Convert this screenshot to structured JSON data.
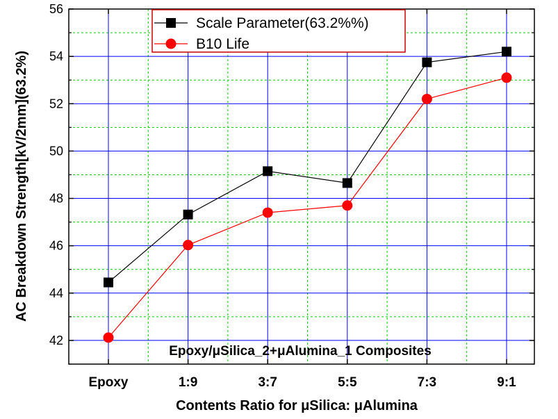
{
  "chart_data": {
    "type": "line",
    "categories": [
      "Epoxy",
      "1:9",
      "3:7",
      "5:5",
      "7:3",
      "9:1"
    ],
    "series": [
      {
        "name": "Scale Parameter(63.2%%)",
        "values": [
          44.45,
          47.32,
          49.15,
          48.65,
          53.75,
          54.2
        ],
        "color": "#000000",
        "marker": "square"
      },
      {
        "name": "B10 Life",
        "values": [
          42.12,
          46.03,
          47.4,
          47.7,
          52.2,
          53.1
        ],
        "color": "#ff0000",
        "marker": "circle"
      }
    ],
    "xlabel": "Contents Ratio for μSilica: μAlumina",
    "ylabel": "AC Breakdown Strength[kV/2mm](63.2%)",
    "ylim": [
      41,
      56
    ],
    "yticks": [
      42,
      44,
      46,
      48,
      50,
      52,
      54,
      56
    ],
    "annotation": "Epoxy/μSilica_2+μAlumina_1 Composites",
    "grid": true,
    "legend_position": "top-center",
    "colors": {
      "major_grid": "#0000ff",
      "minor_grid": "#00cc00",
      "legend_border": "#cc0000"
    }
  }
}
